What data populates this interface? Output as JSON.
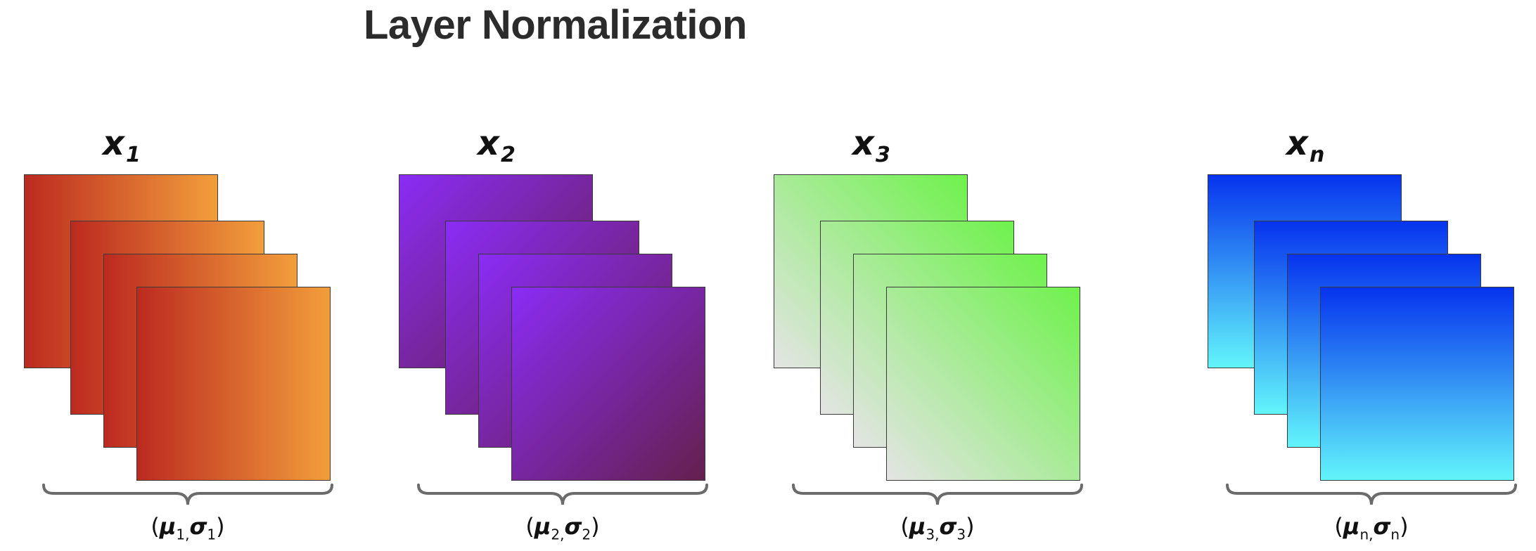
{
  "title": "Layer Normalization",
  "groups": [
    {
      "id": "x1",
      "var_symbol": "x",
      "var_sub": "1",
      "mu_sub": "1",
      "sigma_sub": "1",
      "gradient": {
        "direction": "to right",
        "from": "#bc2a20",
        "to": "#f29e3b"
      }
    },
    {
      "id": "x2",
      "var_symbol": "x",
      "var_sub": "2",
      "mu_sub": "2",
      "sigma_sub": "2",
      "gradient": {
        "direction": "to bottom right",
        "from": "#8b2cf5",
        "to": "#65204d"
      }
    },
    {
      "id": "x3",
      "var_symbol": "x",
      "var_sub": "3",
      "mu_sub": "3",
      "sigma_sub": "3",
      "gradient": {
        "direction": "to top right",
        "from": "#e4e4e4",
        "to": "#6ef24c"
      }
    },
    {
      "id": "xn",
      "var_symbol": "x",
      "var_sub": "n",
      "mu_sub": "n",
      "sigma_sub": "n",
      "gradient": {
        "direction": "to bottom",
        "from": "#0633ee",
        "to": "#62f5fb"
      }
    }
  ],
  "stat_symbols": {
    "mu": "μ",
    "sigma": "σ",
    "open": "(",
    "sep": ",",
    "close": ")"
  },
  "colors": {
    "title": "#2b2b2b",
    "brace": "#6b6b6b",
    "sheet_border": "#3a3a3a"
  }
}
